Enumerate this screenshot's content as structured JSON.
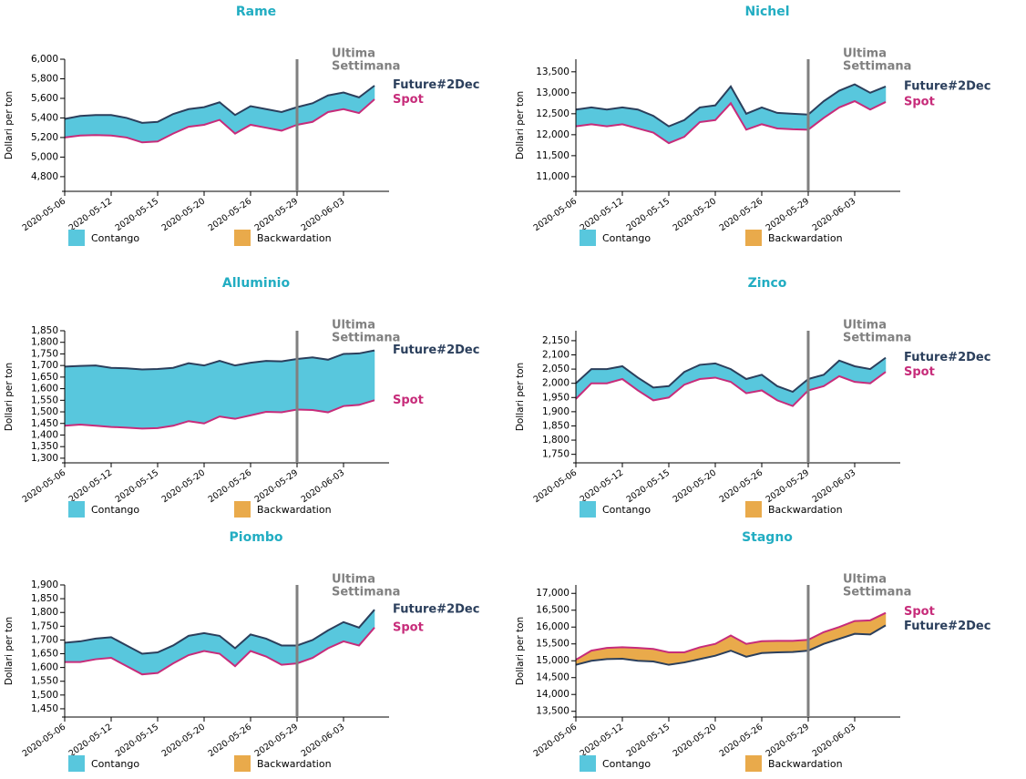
{
  "chart_data": [
    {
      "type": "band",
      "title": "Rame",
      "y_label": "Dollari per ton",
      "categories": [
        "2020-05-06",
        null,
        null,
        "2020-05-12",
        null,
        null,
        "2020-05-15",
        null,
        null,
        "2020-05-20",
        null,
        null,
        "2020-05-26",
        null,
        null,
        "2020-05-29",
        null,
        null,
        "2020-06-03",
        null,
        null
      ],
      "series": [
        {
          "name": "Future#2Dec",
          "color": "#2b3f5c",
          "values": [
            5390,
            5420,
            5430,
            5430,
            5400,
            5350,
            5360,
            5440,
            5490,
            5510,
            5560,
            5430,
            5520,
            5490,
            5460,
            5510,
            5550,
            5630,
            5660,
            5610,
            5730
          ]
        },
        {
          "name": "Spot",
          "color": "#c72c7a",
          "values": [
            5200,
            5220,
            5225,
            5220,
            5200,
            5150,
            5160,
            5240,
            5310,
            5330,
            5380,
            5240,
            5330,
            5300,
            5270,
            5330,
            5360,
            5460,
            5490,
            5450,
            5590
          ]
        }
      ],
      "ylim": [
        4650,
        6000
      ],
      "yticks": [
        {
          "value": 4800,
          "label": "4,800"
        },
        {
          "value": 5000,
          "label": "5,000"
        },
        {
          "value": 5200,
          "label": "5,200"
        },
        {
          "value": 5400,
          "label": "5,400"
        },
        {
          "value": 5600,
          "label": "5,600"
        },
        {
          "value": 5800,
          "label": "5,800"
        },
        {
          "value": 6000,
          "label": "6,000"
        }
      ],
      "annotation": {
        "text": [
          "Ultima",
          "Settimana"
        ],
        "x": "2020-05-29"
      },
      "legend": [
        {
          "name": "Contango",
          "color": "#58c7dd"
        },
        {
          "name": "Backwardation",
          "color": "#e9aa4b"
        }
      ]
    },
    {
      "type": "band",
      "title": "Nichel",
      "y_label": "Dollari per ton",
      "categories": [
        "2020-05-06",
        null,
        null,
        "2020-05-12",
        null,
        null,
        "2020-05-15",
        null,
        null,
        "2020-05-20",
        null,
        null,
        "2020-05-26",
        null,
        null,
        "2020-05-29",
        null,
        null,
        "2020-06-03",
        null,
        null
      ],
      "series": [
        {
          "name": "Future#2Dec",
          "color": "#2b3f5c",
          "values": [
            12600,
            12650,
            12600,
            12650,
            12600,
            12450,
            12200,
            12350,
            12650,
            12700,
            13150,
            12500,
            12650,
            12520,
            12500,
            12480,
            12800,
            13050,
            13200,
            13000,
            13150
          ]
        },
        {
          "name": "Spot",
          "color": "#c72c7a",
          "values": [
            12200,
            12250,
            12200,
            12250,
            12150,
            12050,
            11800,
            11950,
            12300,
            12350,
            12750,
            12120,
            12250,
            12150,
            12130,
            12120,
            12400,
            12650,
            12800,
            12600,
            12780
          ]
        }
      ],
      "ylim": [
        10650,
        13800
      ],
      "yticks": [
        {
          "value": 11000,
          "label": "11,000"
        },
        {
          "value": 11500,
          "label": "11,500"
        },
        {
          "value": 12000,
          "label": "12,000"
        },
        {
          "value": 12500,
          "label": "12,500"
        },
        {
          "value": 13000,
          "label": "13,000"
        },
        {
          "value": 13500,
          "label": "13,500"
        }
      ],
      "annotation": {
        "text": [
          "Ultima",
          "Settimana"
        ],
        "x": "2020-05-29"
      },
      "legend": [
        {
          "name": "Contango",
          "color": "#58c7dd"
        },
        {
          "name": "Backwardation",
          "color": "#e9aa4b"
        }
      ]
    },
    {
      "type": "band",
      "title": "Alluminio",
      "y_label": "Dollari per ton",
      "categories": [
        "2020-05-06",
        null,
        null,
        "2020-05-12",
        null,
        null,
        "2020-05-15",
        null,
        null,
        "2020-05-20",
        null,
        null,
        "2020-05-26",
        null,
        null,
        "2020-05-29",
        null,
        null,
        "2020-06-03",
        null,
        null
      ],
      "series": [
        {
          "name": "Future#2Dec",
          "color": "#2b3f5c",
          "values": [
            1695,
            1698,
            1700,
            1690,
            1688,
            1683,
            1685,
            1690,
            1710,
            1700,
            1720,
            1700,
            1712,
            1720,
            1718,
            1728,
            1735,
            1725,
            1750,
            1752,
            1765
          ]
        },
        {
          "name": "Spot",
          "color": "#c72c7a",
          "values": [
            1440,
            1445,
            1440,
            1435,
            1432,
            1428,
            1430,
            1440,
            1460,
            1450,
            1480,
            1470,
            1485,
            1500,
            1498,
            1510,
            1508,
            1498,
            1525,
            1530,
            1550
          ]
        }
      ],
      "ylim": [
        1280,
        1850
      ],
      "yticks": [
        {
          "value": 1300,
          "label": "1,300"
        },
        {
          "value": 1350,
          "label": "1,350"
        },
        {
          "value": 1400,
          "label": "1,400"
        },
        {
          "value": 1450,
          "label": "1,450"
        },
        {
          "value": 1500,
          "label": "1,500"
        },
        {
          "value": 1550,
          "label": "1,550"
        },
        {
          "value": 1600,
          "label": "1,600"
        },
        {
          "value": 1650,
          "label": "1,650"
        },
        {
          "value": 1700,
          "label": "1,700"
        },
        {
          "value": 1750,
          "label": "1,750"
        },
        {
          "value": 1800,
          "label": "1,800"
        },
        {
          "value": 1850,
          "label": "1,850"
        }
      ],
      "annotation": {
        "text": [
          "Ultima",
          "Settimana"
        ],
        "x": "2020-05-29"
      },
      "legend": [
        {
          "name": "Contango",
          "color": "#58c7dd"
        },
        {
          "name": "Backwardation",
          "color": "#e9aa4b"
        }
      ]
    },
    {
      "type": "band",
      "title": "Zinco",
      "y_label": "Dollari per ton",
      "categories": [
        "2020-05-06",
        null,
        null,
        "2020-05-12",
        null,
        null,
        "2020-05-15",
        null,
        null,
        "2020-05-20",
        null,
        null,
        "2020-05-26",
        null,
        null,
        "2020-05-29",
        null,
        null,
        "2020-06-03",
        null,
        null
      ],
      "series": [
        {
          "name": "Future#2Dec",
          "color": "#2b3f5c",
          "values": [
            2000,
            2050,
            2050,
            2060,
            2020,
            1985,
            1990,
            2040,
            2065,
            2070,
            2050,
            2015,
            2030,
            1990,
            1970,
            2015,
            2030,
            2080,
            2060,
            2050,
            2090
          ]
        },
        {
          "name": "Spot",
          "color": "#c72c7a",
          "values": [
            1945,
            2000,
            2000,
            2015,
            1975,
            1940,
            1950,
            1995,
            2015,
            2020,
            2005,
            1965,
            1975,
            1940,
            1920,
            1975,
            1990,
            2025,
            2005,
            2000,
            2040
          ]
        }
      ],
      "ylim": [
        1720,
        2185
      ],
      "yticks": [
        {
          "value": 1750,
          "label": "1,750"
        },
        {
          "value": 1800,
          "label": "1,800"
        },
        {
          "value": 1850,
          "label": "1,850"
        },
        {
          "value": 1900,
          "label": "1,900"
        },
        {
          "value": 1950,
          "label": "1,950"
        },
        {
          "value": 2000,
          "label": "2,000"
        },
        {
          "value": 2050,
          "label": "2,050"
        },
        {
          "value": 2100,
          "label": "2,100"
        },
        {
          "value": 2150,
          "label": "2,150"
        }
      ],
      "annotation": {
        "text": [
          "Ultima",
          "Settimana"
        ],
        "x": "2020-05-29"
      },
      "legend": [
        {
          "name": "Contango",
          "color": "#58c7dd"
        },
        {
          "name": "Backwardation",
          "color": "#e9aa4b"
        }
      ]
    },
    {
      "type": "band",
      "title": "Piombo",
      "y_label": "Dollari per ton",
      "categories": [
        "2020-05-06",
        null,
        null,
        "2020-05-12",
        null,
        null,
        "2020-05-15",
        null,
        null,
        "2020-05-20",
        null,
        null,
        "2020-05-26",
        null,
        null,
        "2020-05-29",
        null,
        null,
        "2020-06-03",
        null,
        null
      ],
      "series": [
        {
          "name": "Future#2Dec",
          "color": "#2b3f5c",
          "values": [
            1690,
            1695,
            1705,
            1710,
            1680,
            1650,
            1655,
            1680,
            1715,
            1725,
            1715,
            1670,
            1720,
            1705,
            1680,
            1680,
            1700,
            1735,
            1765,
            1745,
            1810
          ]
        },
        {
          "name": "Spot",
          "color": "#c72c7a",
          "values": [
            1620,
            1620,
            1630,
            1635,
            1605,
            1575,
            1580,
            1615,
            1645,
            1660,
            1650,
            1605,
            1660,
            1640,
            1610,
            1615,
            1635,
            1670,
            1695,
            1680,
            1745
          ]
        }
      ],
      "ylim": [
        1420,
        1900
      ],
      "yticks": [
        {
          "value": 1450,
          "label": "1,450"
        },
        {
          "value": 1500,
          "label": "1,500"
        },
        {
          "value": 1550,
          "label": "1,550"
        },
        {
          "value": 1600,
          "label": "1,600"
        },
        {
          "value": 1650,
          "label": "1,650"
        },
        {
          "value": 1700,
          "label": "1,700"
        },
        {
          "value": 1750,
          "label": "1,750"
        },
        {
          "value": 1800,
          "label": "1,800"
        },
        {
          "value": 1850,
          "label": "1,850"
        },
        {
          "value": 1900,
          "label": "1,900"
        }
      ],
      "annotation": {
        "text": [
          "Ultima",
          "Settimana"
        ],
        "x": "2020-05-29"
      },
      "legend": [
        {
          "name": "Contango",
          "color": "#58c7dd"
        },
        {
          "name": "Backwardation",
          "color": "#e9aa4b"
        }
      ]
    },
    {
      "type": "band",
      "title": "Stagno",
      "y_label": "Dollari per ton",
      "categories": [
        "2020-05-06",
        null,
        null,
        "2020-05-12",
        null,
        null,
        "2020-05-15",
        null,
        null,
        "2020-05-20",
        null,
        null,
        "2020-05-26",
        null,
        null,
        "2020-05-29",
        null,
        null,
        "2020-06-03",
        null,
        null
      ],
      "series": [
        {
          "name": "Future#2Dec",
          "color": "#2b3f5c",
          "values": [
            14880,
            15000,
            15050,
            15060,
            15000,
            14980,
            14880,
            14950,
            15050,
            15150,
            15300,
            15120,
            15230,
            15250,
            15260,
            15300,
            15500,
            15650,
            15800,
            15780,
            16050
          ]
        },
        {
          "name": "Spot",
          "color": "#c72c7a",
          "values": [
            15030,
            15300,
            15380,
            15400,
            15380,
            15350,
            15250,
            15250,
            15400,
            15500,
            15750,
            15500,
            15580,
            15590,
            15590,
            15620,
            15850,
            16000,
            16180,
            16200,
            16420
          ]
        }
      ],
      "ylim": [
        13330,
        17250
      ],
      "yticks": [
        {
          "value": 13500,
          "label": "13,500"
        },
        {
          "value": 14000,
          "label": "14,000"
        },
        {
          "value": 14500,
          "label": "14,500"
        },
        {
          "value": 15000,
          "label": "15,000"
        },
        {
          "value": 15500,
          "label": "15,500"
        },
        {
          "value": 16000,
          "label": "16,000"
        },
        {
          "value": 16500,
          "label": "16,500"
        },
        {
          "value": 17000,
          "label": "17,000"
        }
      ],
      "annotation": {
        "text": [
          "Ultima",
          "Settimana"
        ],
        "x": "2020-05-29"
      },
      "legend": [
        {
          "name": "Contango",
          "color": "#58c7dd"
        },
        {
          "name": "Backwardation",
          "color": "#e9aa4b"
        }
      ]
    }
  ]
}
